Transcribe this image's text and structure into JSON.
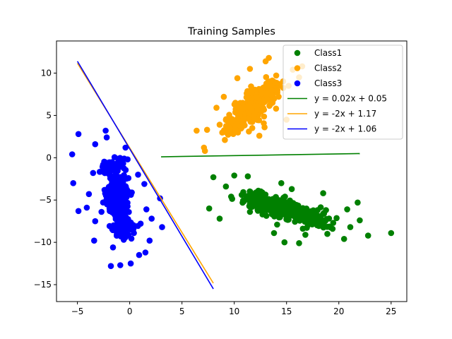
{
  "chart_data": {
    "type": "scatter",
    "title": "Training Samples",
    "xlabel": "",
    "ylabel": "",
    "xlim": [
      -7,
      26.5
    ],
    "ylim": [
      -17,
      13.8
    ],
    "xticks": [
      -5,
      0,
      5,
      10,
      15,
      20,
      25
    ],
    "yticks": [
      -15,
      -10,
      -5,
      0,
      5,
      10
    ],
    "grid": false,
    "legend_position": "top-right",
    "series": [
      {
        "name": "Class1",
        "kind": "points",
        "color": "#008000",
        "points": [
          [
            25,
            -8.9
          ],
          [
            22.8,
            -9.2
          ],
          [
            21.8,
            -5.3
          ],
          [
            20.5,
            -9.6
          ],
          [
            16.2,
            -10.1
          ],
          [
            14.8,
            -10
          ],
          [
            8.0,
            -2.3
          ],
          [
            9.7,
            -4.6
          ],
          [
            12.3,
            -3.9
          ],
          [
            11.3,
            -2.2
          ],
          [
            7.6,
            -6.0
          ],
          [
            8.6,
            -7.2
          ],
          [
            10.0,
            -2.1
          ],
          [
            15.5,
            -3.7
          ],
          [
            14.5,
            -3.0
          ],
          [
            18.5,
            -4.2
          ],
          [
            20.8,
            -6.1
          ],
          [
            19.4,
            -8.4
          ],
          [
            17.8,
            -7.6
          ],
          [
            21.1,
            -8.2
          ],
          [
            13.8,
            -8.9
          ],
          [
            11.5,
            -6.4
          ],
          [
            9.2,
            -3.4
          ],
          [
            16.8,
            -9.1
          ],
          [
            12.7,
            -6.7
          ],
          [
            14.1,
            -7.9
          ],
          [
            22.0,
            -7.4
          ],
          [
            18.9,
            -9.0
          ]
        ]
      },
      {
        "name": "Class2",
        "kind": "points",
        "color": "#ffa500",
        "points": [
          [
            7.1,
            1.2
          ],
          [
            7.2,
            0.8
          ],
          [
            6.4,
            3.2
          ],
          [
            7.4,
            3.3
          ],
          [
            9.1,
            2.1
          ],
          [
            8.3,
            5.9
          ],
          [
            9.0,
            7.2
          ],
          [
            10.3,
            9.4
          ],
          [
            11.5,
            10.5
          ],
          [
            13.0,
            11.4
          ],
          [
            13.3,
            11.8
          ],
          [
            15.6,
            10.4
          ],
          [
            16.2,
            9.5
          ],
          [
            15.2,
            8.5
          ],
          [
            16.5,
            10.8
          ],
          [
            14.0,
            5.8
          ],
          [
            15.0,
            4.5
          ],
          [
            12.4,
            2.6
          ],
          [
            11.4,
            3.1
          ],
          [
            12.9,
            3.6
          ],
          [
            10.6,
            5.3
          ],
          [
            8.6,
            3.9
          ]
        ]
      },
      {
        "name": "Class3",
        "kind": "points",
        "color": "#0000ff",
        "points": [
          [
            -5.5,
            0.4
          ],
          [
            -5.4,
            -3.0
          ],
          [
            -4.9,
            -6.3
          ],
          [
            -4.9,
            2.8
          ],
          [
            -3.3,
            1.6
          ],
          [
            -2.3,
            3.2
          ],
          [
            -2.2,
            2.4
          ],
          [
            -0.4,
            1.2
          ],
          [
            -0.2,
            -0.2
          ],
          [
            2.9,
            -4.8
          ],
          [
            3.1,
            -8.2
          ],
          [
            2.1,
            -7.2
          ],
          [
            1.9,
            -9.8
          ],
          [
            1.5,
            -11.2
          ],
          [
            0.9,
            -11.5
          ],
          [
            0.1,
            -12.5
          ],
          [
            -0.9,
            -12.7
          ],
          [
            -1.8,
            -12.8
          ],
          [
            -3.4,
            -9.8
          ],
          [
            -3.3,
            -7.5
          ],
          [
            -3.9,
            -4.3
          ],
          [
            -4.1,
            -5.9
          ],
          [
            -3.5,
            -1.8
          ],
          [
            -2.7,
            -6.4
          ],
          [
            -1.2,
            -7.8
          ],
          [
            0.4,
            -8.9
          ],
          [
            1.6,
            -6.1
          ],
          [
            1.4,
            -3.1
          ],
          [
            0.8,
            -2.0
          ],
          [
            -1.6,
            -10.6
          ],
          [
            -2.1,
            -4.9
          ],
          [
            -0.8,
            -5.5
          ],
          [
            0.2,
            -4.1
          ],
          [
            -1.1,
            -2.7
          ]
        ]
      },
      {
        "name": "y = 0.02x + 0.05",
        "kind": "line",
        "color": "#008000",
        "x": [
          3,
          22
        ],
        "y": [
          0.11,
          0.49
        ]
      },
      {
        "name": "y = -2x + 1.17",
        "kind": "line",
        "color": "#ffa500",
        "x": [
          -5,
          8
        ],
        "y": [
          11.17,
          -14.83
        ]
      },
      {
        "name": "y = -2x + 1.06",
        "kind": "line",
        "color": "#0000ff",
        "x": [
          -5,
          8
        ],
        "y": [
          11.4,
          -15.5
        ]
      }
    ],
    "clusters": [
      {
        "series": "Class1",
        "points_hint": "dense",
        "ellipses": [
          [
            15.0,
            -6.1,
            4.8,
            1.6,
            -20,
            220
          ],
          [
            12.5,
            -5.2,
            2.5,
            1.4,
            -20,
            90
          ],
          [
            17.5,
            -7.3,
            2.5,
            1.3,
            -20,
            90
          ]
        ]
      },
      {
        "series": "Class2",
        "points_hint": "dense",
        "ellipses": [
          [
            11.8,
            6.0,
            3.6,
            1.9,
            55,
            220
          ],
          [
            10.0,
            3.8,
            1.8,
            1.3,
            55,
            80
          ],
          [
            13.5,
            8.2,
            2.0,
            1.4,
            55,
            80
          ]
        ]
      },
      {
        "series": "Class3",
        "points_hint": "dense",
        "ellipses": [
          [
            -1.2,
            -4.6,
            1.5,
            3.6,
            0,
            200
          ],
          [
            -1.8,
            -1.0,
            1.6,
            1.6,
            0,
            60
          ],
          [
            -0.6,
            -8.0,
            1.6,
            1.8,
            0,
            70
          ]
        ]
      }
    ],
    "legend": [
      {
        "label": "Class1",
        "marker": "point",
        "color": "#008000"
      },
      {
        "label": "Class2",
        "marker": "point",
        "color": "#ffa500"
      },
      {
        "label": "Class3",
        "marker": "point",
        "color": "#0000ff"
      },
      {
        "label": "y = 0.02x + 0.05",
        "marker": "line",
        "color": "#008000"
      },
      {
        "label": "y = -2x + 1.17",
        "marker": "line",
        "color": "#ffa500"
      },
      {
        "label": "y = -2x + 1.06",
        "marker": "line",
        "color": "#0000ff"
      }
    ]
  }
}
